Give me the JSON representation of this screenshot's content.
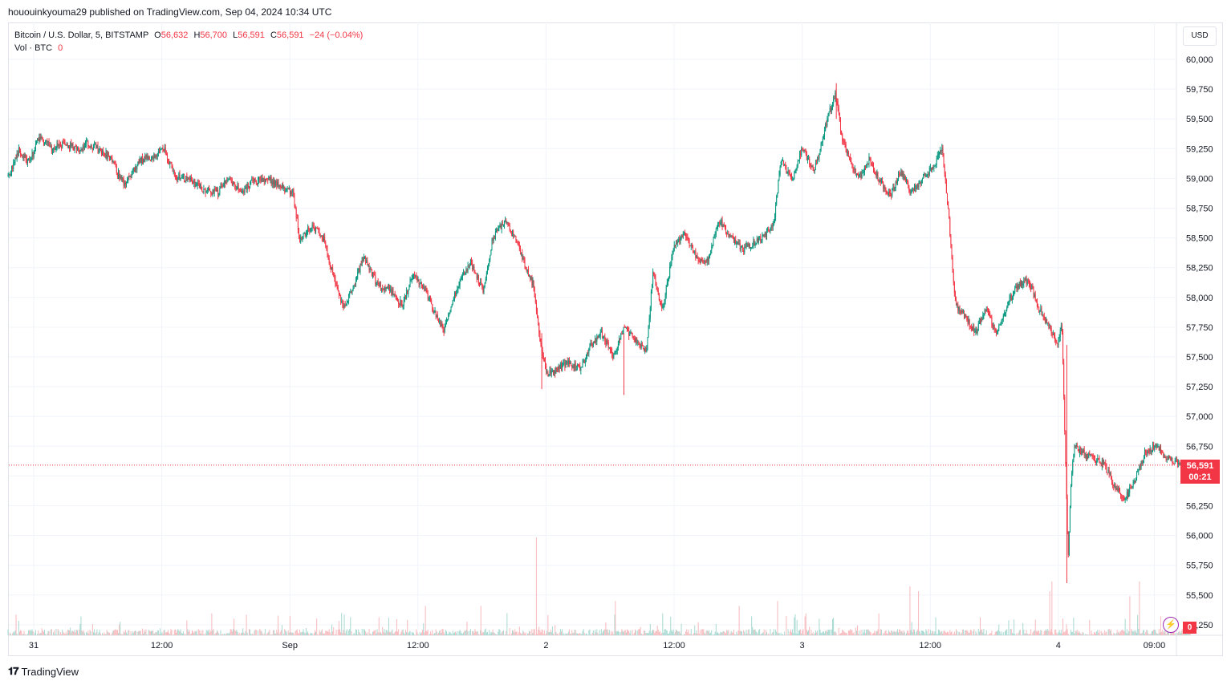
{
  "header": {
    "publish_text": "hououinkyouma29 published on TradingView.com, Sep 04, 2024 10:34 UTC"
  },
  "legend": {
    "symbol": "Bitcoin / U.S. Dollar, 5, BITSTAMP",
    "open_label": "O",
    "open": "56,632",
    "high_label": "H",
    "high": "56,700",
    "low_label": "L",
    "low": "56,591",
    "close_label": "C",
    "close": "56,591",
    "change": "−24 (−0.04%)",
    "vol_label": "Vol · BTC",
    "vol_value": "0"
  },
  "toolbar": {
    "currency_button": "USD"
  },
  "badges": {
    "last_price": "56,591",
    "countdown": "00:21",
    "volume": "0",
    "bolt_icon": "lightning-icon"
  },
  "brand": {
    "logo": "𝟏𝟕",
    "name": "TradingView"
  },
  "colors": {
    "up": "#089981",
    "down": "#f23645",
    "up_vol": "#a7d9d1",
    "down_vol": "#f7b9bd",
    "grid": "#f0f3fa"
  },
  "chart_data": {
    "type": "candlestick",
    "symbol": "Bitcoin / U.S. Dollar",
    "interval": "5",
    "exchange": "BITSTAMP",
    "currency": "USD",
    "ylim": [
      55150,
      60150
    ],
    "y_ticks": [
      "60,000",
      "59,750",
      "59,500",
      "59,250",
      "59,000",
      "58,750",
      "58,500",
      "58,250",
      "58,000",
      "57,750",
      "57,500",
      "57,250",
      "57,000",
      "56,750",
      "56,500",
      "56,250",
      "56,000",
      "55,750",
      "55,500",
      "55,250"
    ],
    "x_ticks": [
      {
        "label": "31",
        "t": 0
      },
      {
        "label": "12:00",
        "t": 12
      },
      {
        "label": "Sep",
        "t": 24
      },
      {
        "label": "12:00",
        "t": 36
      },
      {
        "label": "2",
        "t": 48
      },
      {
        "label": "12:00",
        "t": 60
      },
      {
        "label": "3",
        "t": 72
      },
      {
        "label": "12:00",
        "t": 84
      },
      {
        "label": "4",
        "t": 96
      },
      {
        "label": "09:00",
        "t": 105
      }
    ],
    "t_range": [
      -2.4,
      108.6
    ],
    "last_price": 56591,
    "path": [
      [
        -2.3,
        59020
      ],
      [
        -1.3,
        59230
      ],
      [
        -0.3,
        59130
      ],
      [
        0.6,
        59360
      ],
      [
        1.8,
        59250
      ],
      [
        3,
        59300
      ],
      [
        4.3,
        59230
      ],
      [
        5.1,
        59300
      ],
      [
        6,
        59250
      ],
      [
        7.2,
        59180
      ],
      [
        8.6,
        58940
      ],
      [
        10,
        59150
      ],
      [
        11.3,
        59180
      ],
      [
        12.3,
        59250
      ],
      [
        13.3,
        59020
      ],
      [
        14.7,
        58990
      ],
      [
        16.1,
        58900
      ],
      [
        17.3,
        58880
      ],
      [
        18.4,
        59000
      ],
      [
        19.6,
        58880
      ],
      [
        20.6,
        58980
      ],
      [
        22,
        59000
      ],
      [
        23.3,
        58920
      ],
      [
        24.4,
        58880
      ],
      [
        25,
        58480
      ],
      [
        26.2,
        58600
      ],
      [
        27.2,
        58500
      ],
      [
        28.1,
        58200
      ],
      [
        29.1,
        57920
      ],
      [
        30.1,
        58100
      ],
      [
        31,
        58350
      ],
      [
        32.3,
        58100
      ],
      [
        33.5,
        58050
      ],
      [
        34.6,
        57930
      ],
      [
        35.6,
        58180
      ],
      [
        36.6,
        58100
      ],
      [
        37.5,
        57900
      ],
      [
        38.5,
        57720
      ],
      [
        39.8,
        58100
      ],
      [
        41,
        58300
      ],
      [
        42.2,
        58050
      ],
      [
        43.1,
        58500
      ],
      [
        44.2,
        58650
      ],
      [
        45.2,
        58500
      ],
      [
        46.1,
        58280
      ],
      [
        46.9,
        58100
      ],
      [
        47.6,
        57600
      ],
      [
        48.2,
        57350
      ],
      [
        49.2,
        57400
      ],
      [
        50.2,
        57450
      ],
      [
        51.3,
        57400
      ],
      [
        52.3,
        57600
      ],
      [
        53.3,
        57700
      ],
      [
        54.4,
        57500
      ],
      [
        55.3,
        57750
      ],
      [
        56.4,
        57650
      ],
      [
        57.5,
        57550
      ],
      [
        58.1,
        58200
      ],
      [
        59,
        57900
      ],
      [
        60,
        58400
      ],
      [
        61.1,
        58550
      ],
      [
        62.1,
        58350
      ],
      [
        63.1,
        58280
      ],
      [
        64.3,
        58650
      ],
      [
        65.4,
        58500
      ],
      [
        66.5,
        58400
      ],
      [
        67.4,
        58450
      ],
      [
        68.3,
        58500
      ],
      [
        69.4,
        58600
      ],
      [
        70.1,
        59150
      ],
      [
        71.1,
        58980
      ],
      [
        72.1,
        59250
      ],
      [
        73.2,
        59050
      ],
      [
        74.3,
        59450
      ],
      [
        75.2,
        59720
      ],
      [
        75.8,
        59350
      ],
      [
        76.5,
        59150
      ],
      [
        77.4,
        59000
      ],
      [
        78.4,
        59170
      ],
      [
        79.3,
        58980
      ],
      [
        80.3,
        58850
      ],
      [
        81.3,
        59050
      ],
      [
        82.3,
        58880
      ],
      [
        83.3,
        59000
      ],
      [
        84.4,
        59100
      ],
      [
        85.2,
        59250
      ],
      [
        85.8,
        58700
      ],
      [
        86.4,
        57950
      ],
      [
        87.3,
        57850
      ],
      [
        88.3,
        57700
      ],
      [
        89.3,
        57900
      ],
      [
        90.3,
        57700
      ],
      [
        91.3,
        57950
      ],
      [
        92.3,
        58100
      ],
      [
        93.3,
        58150
      ],
      [
        94.3,
        57900
      ],
      [
        95.3,
        57750
      ],
      [
        96,
        57600
      ],
      [
        96.4,
        57800
      ],
      [
        96.8,
        56500
      ],
      [
        97,
        55800
      ],
      [
        97.3,
        56500
      ],
      [
        97.6,
        56750
      ],
      [
        98.3,
        56700
      ],
      [
        99.3,
        56650
      ],
      [
        100.3,
        56600
      ],
      [
        101.2,
        56450
      ],
      [
        102.2,
        56300
      ],
      [
        103.2,
        56450
      ],
      [
        104.2,
        56700
      ],
      [
        105.2,
        56750
      ],
      [
        106.2,
        56650
      ],
      [
        107.3,
        56600
      ],
      [
        108,
        56530
      ],
      [
        108.4,
        56591
      ]
    ],
    "volume_spikes": [
      {
        "t": 47.1,
        "v": 100
      },
      {
        "t": 82.1,
        "v": 50
      },
      {
        "t": 82.9,
        "v": 45
      },
      {
        "t": 95.4,
        "v": 55
      },
      {
        "t": 95.2,
        "v": 45
      },
      {
        "t": 103.6,
        "v": 55
      },
      {
        "t": 102.7,
        "v": 40
      },
      {
        "t": 36.7,
        "v": 30
      },
      {
        "t": 41.9,
        "v": 30
      },
      {
        "t": 54.5,
        "v": 35
      },
      {
        "t": 66.1,
        "v": 30
      },
      {
        "t": 69.7,
        "v": 35
      },
      {
        "t": 22.9,
        "v": 20
      }
    ]
  }
}
